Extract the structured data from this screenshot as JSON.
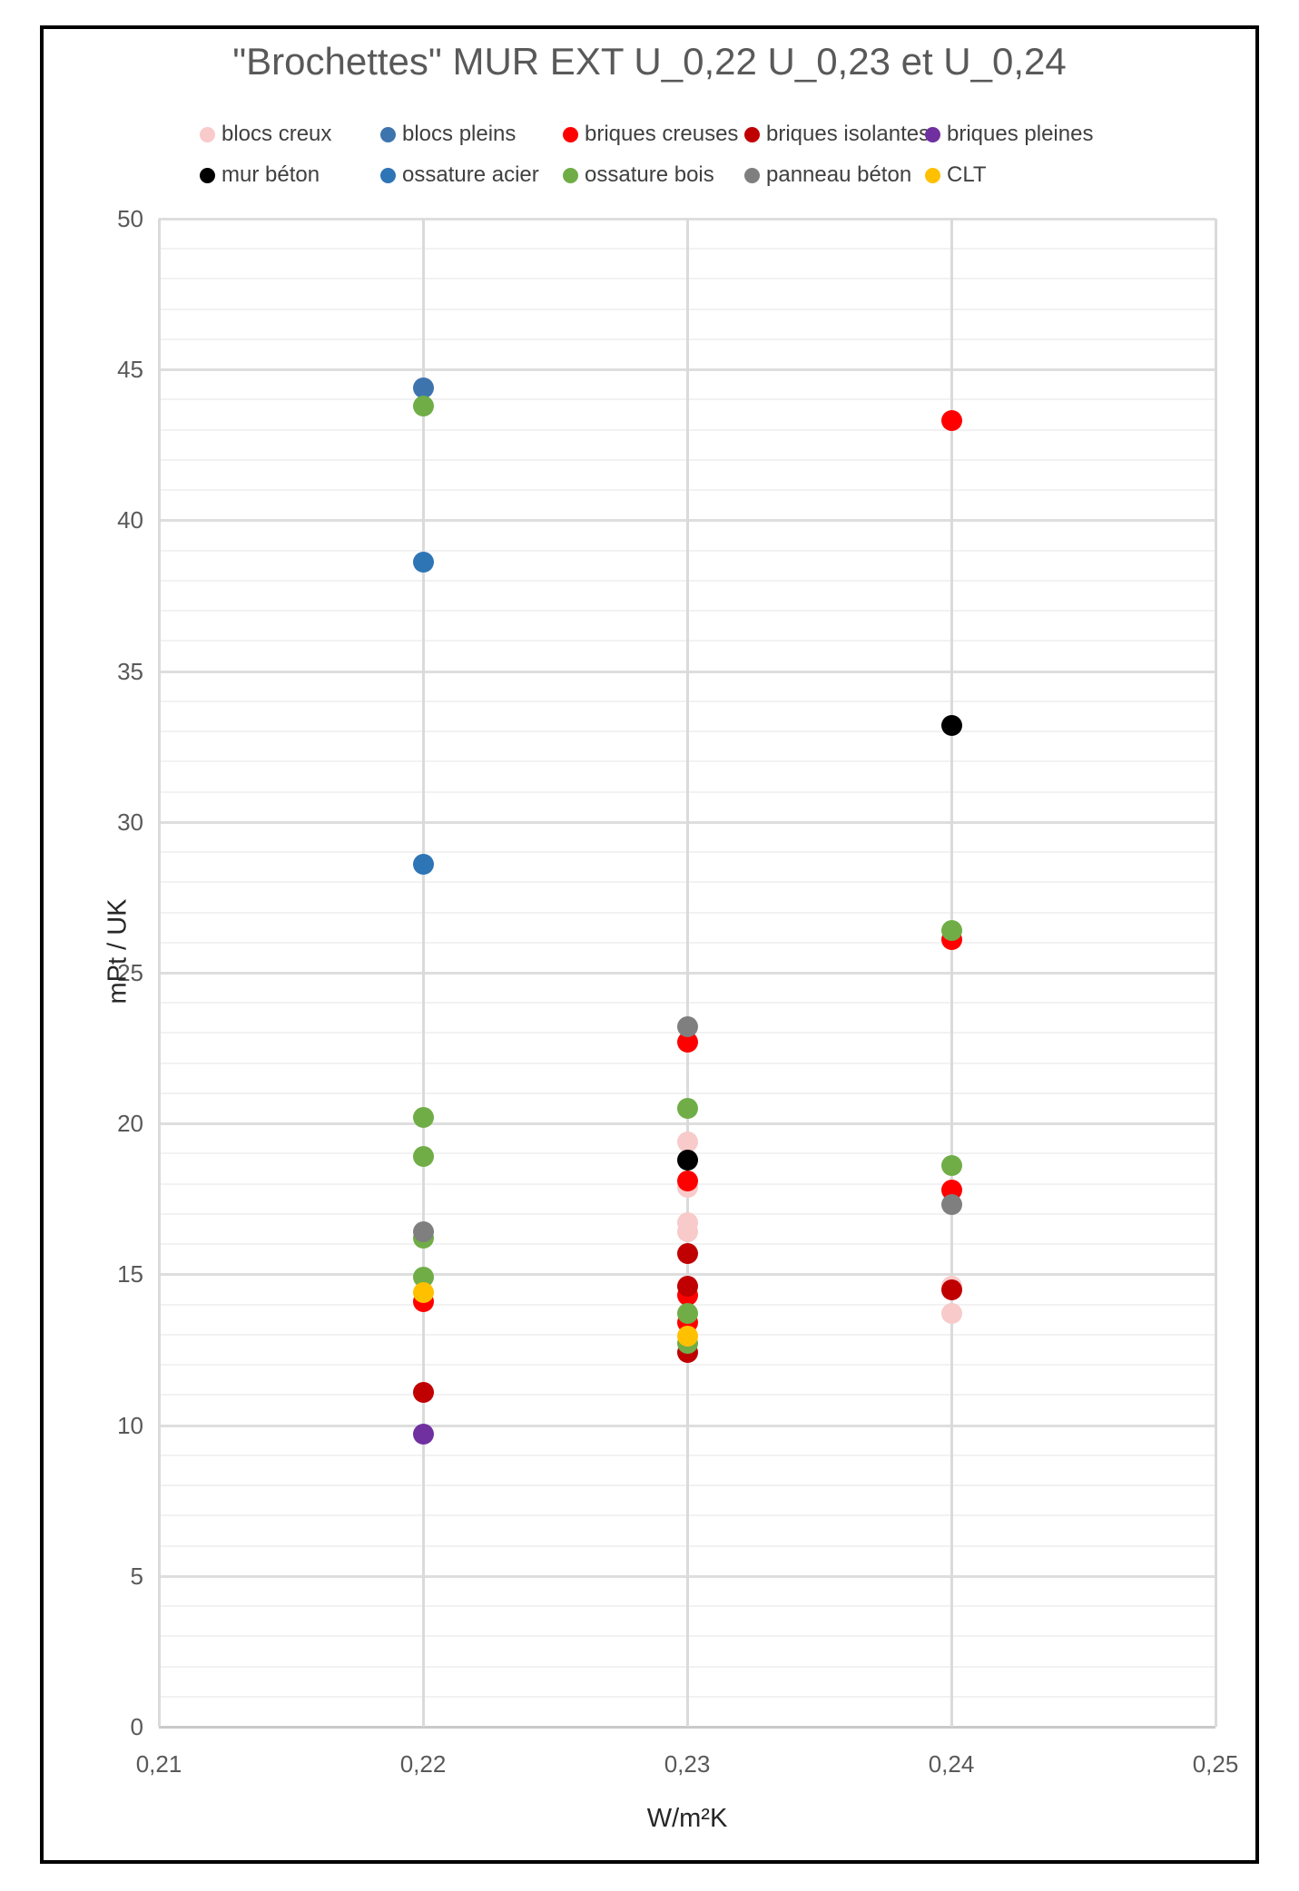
{
  "chart_data": {
    "type": "scatter",
    "title": "\"Brochettes\" MUR EXT U_0,22 U_0,23 et U_0,24",
    "xlabel": "W/m²K",
    "ylabel": "mPt / UK",
    "xlim": [
      0.21,
      0.25
    ],
    "ylim": [
      0,
      50
    ],
    "x_ticks": [
      {
        "value": 0.21,
        "label": "0,21"
      },
      {
        "value": 0.22,
        "label": "0,22"
      },
      {
        "value": 0.23,
        "label": "0,23"
      },
      {
        "value": 0.24,
        "label": "0,24"
      },
      {
        "value": 0.25,
        "label": "0,25"
      }
    ],
    "y_ticks": [
      0,
      5,
      10,
      15,
      20,
      25,
      30,
      35,
      40,
      45,
      50
    ],
    "grid": {
      "y_minor_step": 1,
      "y_major_step": 5,
      "vertical_at_x_ticks": true
    },
    "legend_position": "top",
    "legend_rows": [
      5,
      5
    ],
    "series": [
      {
        "name": "blocs creux",
        "color": "#F8CACA",
        "points": [
          [
            0.23,
            19.4
          ],
          [
            0.23,
            17.9
          ],
          [
            0.23,
            16.7
          ],
          [
            0.23,
            16.4
          ],
          [
            0.24,
            14.6
          ],
          [
            0.24,
            13.7
          ]
        ]
      },
      {
        "name": "blocs pleins",
        "color": "#3E74AE",
        "points": [
          [
            0.22,
            44.4
          ]
        ]
      },
      {
        "name": "briques creuses",
        "color": "#FF0000",
        "points": [
          [
            0.22,
            14.1
          ],
          [
            0.23,
            22.7
          ],
          [
            0.23,
            18.1
          ],
          [
            0.23,
            14.3
          ],
          [
            0.23,
            13.4
          ],
          [
            0.24,
            43.3
          ],
          [
            0.24,
            26.1
          ],
          [
            0.24,
            17.8
          ]
        ]
      },
      {
        "name": "briques isolantes",
        "color": "#C00000",
        "points": [
          [
            0.22,
            11.1
          ],
          [
            0.23,
            15.7
          ],
          [
            0.23,
            14.6
          ],
          [
            0.23,
            12.4
          ],
          [
            0.24,
            14.5
          ]
        ]
      },
      {
        "name": "briques pleines",
        "color": "#7030A0",
        "points": [
          [
            0.22,
            9.7
          ]
        ]
      },
      {
        "name": "mur béton",
        "color": "#000000",
        "points": [
          [
            0.23,
            18.8
          ],
          [
            0.24,
            33.2
          ]
        ]
      },
      {
        "name": "ossature acier",
        "color": "#2E75B6",
        "points": [
          [
            0.22,
            38.6
          ],
          [
            0.22,
            28.6
          ]
        ]
      },
      {
        "name": "ossature bois",
        "color": "#70AD47",
        "points": [
          [
            0.22,
            43.8
          ],
          [
            0.22,
            20.2
          ],
          [
            0.22,
            18.9
          ],
          [
            0.22,
            16.2
          ],
          [
            0.22,
            14.9
          ],
          [
            0.23,
            20.5
          ],
          [
            0.23,
            13.7
          ],
          [
            0.23,
            12.7
          ],
          [
            0.24,
            26.4
          ],
          [
            0.24,
            18.6
          ]
        ]
      },
      {
        "name": "panneau béton",
        "color": "#7F7F7F",
        "points": [
          [
            0.22,
            16.4
          ],
          [
            0.23,
            23.2
          ],
          [
            0.24,
            17.3
          ]
        ]
      },
      {
        "name": "CLT",
        "color": "#FFC000",
        "points": [
          [
            0.22,
            14.4
          ],
          [
            0.23,
            12.95
          ]
        ]
      }
    ]
  }
}
